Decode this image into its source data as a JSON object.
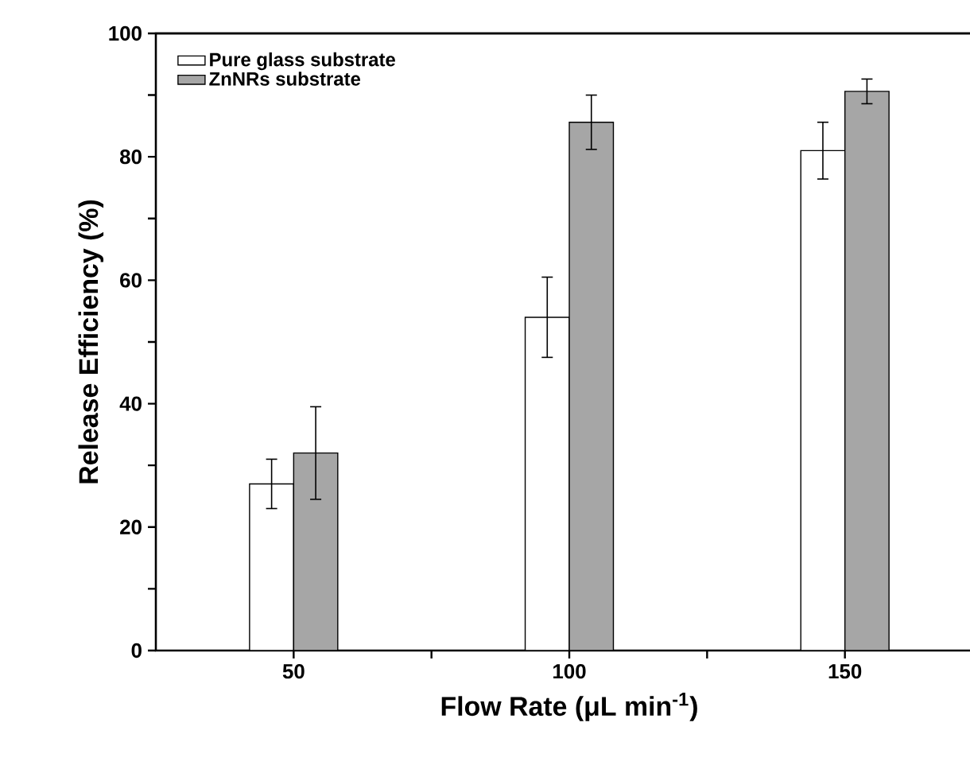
{
  "chart_data": {
    "type": "bar",
    "xlabel": "Flow Rate (μL min$^{-1}$)",
    "ylabel": "Release Efficiency (%)",
    "x": [
      50,
      100,
      150
    ],
    "series": [
      {
        "name": "Pure glass substrate",
        "color": "#ffffff",
        "values": [
          27,
          54,
          81
        ],
        "errors": [
          4,
          6.5,
          4.6
        ]
      },
      {
        "name": "ZnNRs substrate",
        "color": "#a6a6a6",
        "values": [
          32,
          85.6,
          90.6
        ],
        "errors": [
          7.5,
          4.4,
          2
        ]
      }
    ],
    "xlim": [
      25,
      175
    ],
    "xticks": [
      50,
      {
        "value": 75,
        "label": null
      },
      100,
      {
        "value": 125,
        "label": null
      },
      150
    ],
    "ylim": [
      0,
      100
    ],
    "yticks": [
      0,
      {
        "value": 10,
        "label": null
      },
      20,
      {
        "value": 30,
        "label": null
      },
      40,
      {
        "value": 50,
        "label": null
      },
      60,
      {
        "value": 70,
        "label": null
      },
      80,
      {
        "value": 90,
        "label": null
      },
      100
    ],
    "legend": "top left",
    "grid": false
  }
}
